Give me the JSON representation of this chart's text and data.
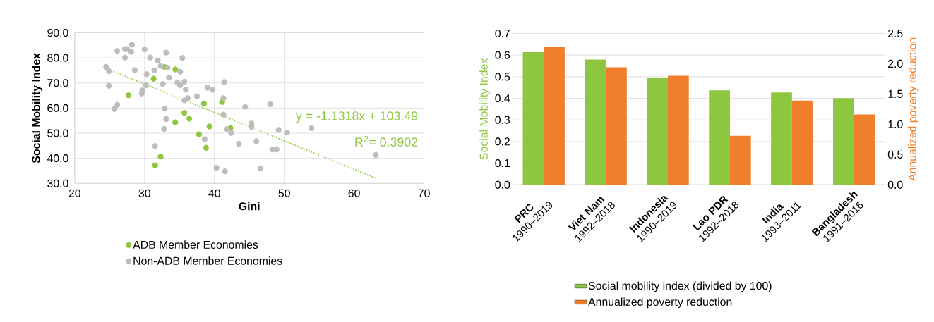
{
  "chart_data": [
    {
      "type": "scatter",
      "xlabel": "Gini",
      "ylabel": "Social Mobility Index",
      "xlim": [
        20,
        70
      ],
      "ylim": [
        30,
        90
      ],
      "xticks": [
        20,
        30,
        40,
        50,
        60,
        70
      ],
      "yticks": [
        {
          "value": 30,
          "label": "30.0"
        },
        {
          "value": 40,
          "label": "40.0"
        },
        {
          "value": 50,
          "label": "50.0"
        },
        {
          "value": 60,
          "label": "60.0"
        },
        {
          "value": 70,
          "label": "70.0"
        },
        {
          "value": 80,
          "label": "80.0"
        },
        {
          "value": 90,
          "label": "90.0"
        }
      ],
      "grid": true,
      "legend": "bottom",
      "annotations": [
        "y = -1.1318x + 103.49",
        "R$^{2}$= 0.3902"
      ],
      "series": [
        {
          "name": "ADB Member Economies",
          "color": "#8dc63f",
          "marker": "circle",
          "x": [
            32.9,
            34.4,
            31.3,
            27.7,
            38.5,
            41.1,
            35.7,
            36.4,
            34.4,
            39.3,
            37.8,
            38.8,
            42.3,
            32.3,
            31.5
          ],
          "values": [
            76.3,
            75.4,
            71.7,
            65.1,
            61.8,
            62.4,
            58.1,
            55.8,
            54.3,
            52.7,
            49.5,
            44.2,
            52.1,
            40.7,
            37.2
          ]
        },
        {
          "name": "Non-ADB Member Economies",
          "color": "#bdbdbd",
          "marker": "circle",
          "x": [
            24.5,
            24.9,
            24.9,
            26.1,
            27.2,
            27.5,
            28.2,
            28.1,
            27.2,
            28.6,
            26.1,
            25.7,
            30.0,
            30.8,
            31.9,
            33.1,
            32.3,
            33.3,
            31.4,
            30.3,
            33.5,
            35.4,
            35.1,
            30.2,
            29.7,
            29.6,
            32.6,
            34.7,
            35.1,
            35.7,
            35.9,
            36.2,
            35.7,
            37.5,
            39.0,
            39.7,
            41.4,
            41.3,
            41.3,
            32.9,
            33.1,
            32.8,
            31.5,
            38.6,
            40.3,
            41.5,
            41.8,
            42.4,
            43.5,
            44.4,
            48.0,
            45.3,
            45.3,
            46.0,
            49.2,
            50.4,
            53.9,
            48.3,
            48.9,
            46.6,
            63.1
          ],
          "values": [
            76.4,
            74.7,
            68.9,
            82.8,
            83.5,
            83.5,
            85.3,
            82.4,
            80.1,
            75.1,
            61.3,
            59.6,
            83.4,
            80.1,
            78.9,
            82.1,
            76.8,
            76.1,
            75.1,
            73.5,
            72.1,
            80.0,
            74.5,
            69.1,
            67.1,
            65.8,
            69.6,
            70.2,
            69.1,
            70.5,
            67.4,
            64.0,
            63.1,
            64.7,
            68.1,
            67.3,
            70.4,
            64.0,
            57.4,
            59.8,
            55.6,
            51.7,
            44.9,
            47.6,
            36.2,
            34.8,
            51.6,
            50.1,
            45.8,
            60.5,
            61.5,
            53.9,
            52.5,
            46.8,
            51.3,
            50.3,
            52.0,
            43.5,
            43.5,
            36.0,
            41.3
          ]
        },
        {
          "type": "line",
          "color": "#8dc63f",
          "line_style": "dotted",
          "marker": "none",
          "x": [
            24.5,
            63.1
          ],
          "values": [
            75.8,
            32.1
          ]
        }
      ]
    },
    {
      "type": "bar",
      "ylabel": "Social Mobility Index",
      "y2label": "Annualized poverty reduction",
      "categories": [
        "**PRC** 1990–2019",
        "**Viet Nam** 1992–2018",
        "**Indonesia** 1990–2019",
        "**Lao PDR** 1992–2018",
        "**India** 1993–2011",
        "**Bangladesh** 1991–2016"
      ],
      "ylim": [
        0,
        0.7
      ],
      "yticks": [
        {
          "value": 0,
          "label": "0.0"
        },
        0.1,
        0.2,
        0.3,
        0.4,
        0.5,
        0.6,
        0.7
      ],
      "y2lim": [
        0,
        2.5
      ],
      "y2ticks": [
        {
          "value": 0,
          "label": "0.0"
        },
        0.5,
        {
          "value": 1,
          "label": "1.0"
        },
        1.5,
        {
          "value": 2,
          "label": "2.0"
        },
        2.5
      ],
      "grid": "y",
      "legend": "bottom",
      "series": [
        {
          "name": "Social mobility index (divided by 100)",
          "color": "#8dc63f",
          "values": [
            0.614,
            0.579,
            0.493,
            0.437,
            0.427,
            0.401
          ]
        },
        {
          "name": "Annualized poverty reduction",
          "color": "#f07f2b",
          "axis": "y2",
          "values": [
            2.28,
            1.94,
            1.8,
            0.81,
            1.39,
            1.16
          ]
        }
      ]
    }
  ]
}
